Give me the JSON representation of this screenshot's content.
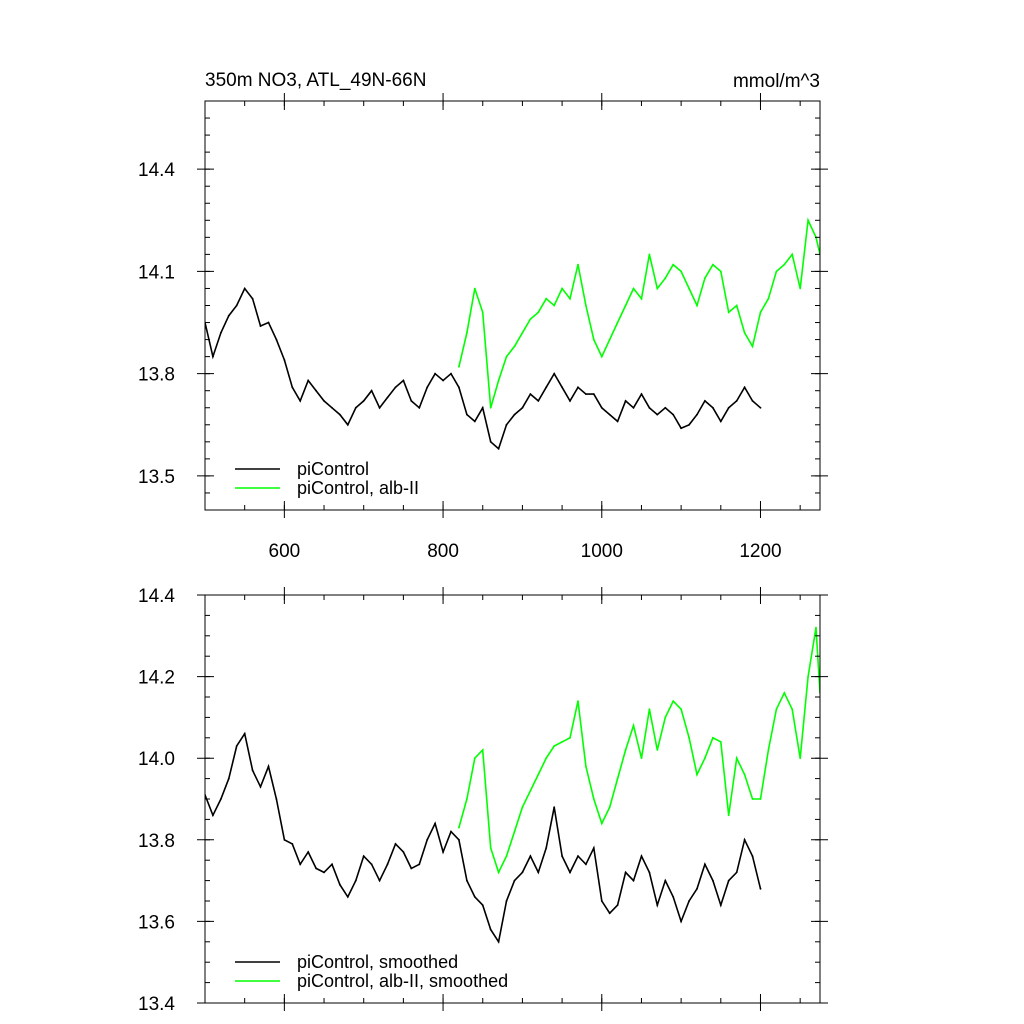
{
  "chart_data": [
    {
      "type": "line",
      "title": "350m NO3, ATL_49N-66N",
      "units": "mmol/m^3",
      "xlim": [
        500,
        1275
      ],
      "ylim": [
        13.4,
        14.6
      ],
      "xticks": [
        600,
        800,
        1000,
        1200
      ],
      "yticks": [
        13.5,
        13.8,
        14.1,
        14.4
      ],
      "xtick_labels": [
        "600",
        "800",
        "1000",
        "1200"
      ],
      "ytick_labels": [
        "13.5",
        "13.8",
        "14.1",
        "14.4"
      ],
      "legend": "bottom-left",
      "grid": false,
      "series": [
        {
          "name": "piControl",
          "color": "#000000",
          "x": [
            500,
            510,
            520,
            530,
            540,
            550,
            560,
            570,
            580,
            590,
            600,
            610,
            620,
            630,
            640,
            650,
            660,
            670,
            680,
            690,
            700,
            710,
            720,
            730,
            740,
            750,
            760,
            770,
            780,
            790,
            800,
            810,
            820,
            830,
            840,
            850,
            860,
            870,
            880,
            890,
            900,
            910,
            920,
            930,
            940,
            950,
            960,
            970,
            980,
            990,
            1000,
            1010,
            1020,
            1030,
            1040,
            1050,
            1060,
            1070,
            1080,
            1090,
            1100,
            1110,
            1120,
            1130,
            1140,
            1150,
            1160,
            1170,
            1180,
            1190,
            1200
          ],
          "values": [
            13.95,
            13.85,
            13.92,
            13.97,
            14.0,
            14.05,
            14.02,
            13.94,
            13.95,
            13.9,
            13.84,
            13.76,
            13.72,
            13.78,
            13.75,
            13.72,
            13.7,
            13.68,
            13.65,
            13.7,
            13.72,
            13.75,
            13.7,
            13.73,
            13.76,
            13.78,
            13.72,
            13.7,
            13.76,
            13.8,
            13.78,
            13.8,
            13.76,
            13.68,
            13.66,
            13.7,
            13.6,
            13.58,
            13.65,
            13.68,
            13.7,
            13.74,
            13.72,
            13.76,
            13.8,
            13.76,
            13.72,
            13.76,
            13.74,
            13.74,
            13.7,
            13.68,
            13.66,
            13.72,
            13.7,
            13.74,
            13.7,
            13.68,
            13.7,
            13.68,
            13.64,
            13.65,
            13.68,
            13.72,
            13.7,
            13.66,
            13.7,
            13.72,
            13.76,
            13.72,
            13.7
          ]
        },
        {
          "name": "piControl, alb-II",
          "color": "#00ff00",
          "x": [
            820,
            830,
            840,
            850,
            860,
            870,
            880,
            890,
            900,
            910,
            920,
            930,
            940,
            950,
            960,
            970,
            980,
            990,
            1000,
            1010,
            1020,
            1030,
            1040,
            1050,
            1060,
            1070,
            1080,
            1090,
            1100,
            1110,
            1120,
            1130,
            1140,
            1150,
            1160,
            1170,
            1180,
            1190,
            1200,
            1210,
            1220,
            1230,
            1240,
            1250,
            1260,
            1270,
            1275
          ],
          "values": [
            13.82,
            13.92,
            14.05,
            13.98,
            13.7,
            13.78,
            13.85,
            13.88,
            13.92,
            13.96,
            13.98,
            14.02,
            14.0,
            14.05,
            14.02,
            14.12,
            14.0,
            13.9,
            13.85,
            13.9,
            13.95,
            14.0,
            14.05,
            14.02,
            14.15,
            14.05,
            14.08,
            14.12,
            14.1,
            14.05,
            14.0,
            14.08,
            14.12,
            14.1,
            13.98,
            14.0,
            13.92,
            13.88,
            13.98,
            14.02,
            14.1,
            14.12,
            14.15,
            14.05,
            14.25,
            14.2,
            14.15
          ]
        }
      ]
    },
    {
      "type": "line",
      "xlim": [
        500,
        1275
      ],
      "ylim": [
        13.4,
        14.4
      ],
      "xticks": [
        600,
        800,
        1000,
        1200
      ],
      "yticks": [
        13.4,
        13.6,
        13.8,
        14.0,
        14.2,
        14.4
      ],
      "ytick_labels": [
        "13.4",
        "13.6",
        "13.8",
        "14.0",
        "14.2",
        "14.4"
      ],
      "legend": "bottom-left",
      "grid": false,
      "series": [
        {
          "name": "piControl, smoothed",
          "color": "#000000",
          "x": [
            500,
            510,
            520,
            530,
            540,
            550,
            560,
            570,
            580,
            590,
            600,
            610,
            620,
            630,
            640,
            650,
            660,
            670,
            680,
            690,
            700,
            710,
            720,
            730,
            740,
            750,
            760,
            770,
            780,
            790,
            800,
            810,
            820,
            830,
            840,
            850,
            860,
            870,
            880,
            890,
            900,
            910,
            920,
            930,
            940,
            950,
            960,
            970,
            980,
            990,
            1000,
            1010,
            1020,
            1030,
            1040,
            1050,
            1060,
            1070,
            1080,
            1090,
            1100,
            1110,
            1120,
            1130,
            1140,
            1150,
            1160,
            1170,
            1180,
            1190,
            1200
          ],
          "values": [
            13.91,
            13.86,
            13.9,
            13.95,
            14.03,
            14.06,
            13.97,
            13.93,
            13.98,
            13.9,
            13.8,
            13.79,
            13.74,
            13.77,
            13.73,
            13.72,
            13.74,
            13.69,
            13.66,
            13.7,
            13.76,
            13.74,
            13.7,
            13.74,
            13.79,
            13.77,
            13.73,
            13.74,
            13.8,
            13.84,
            13.77,
            13.82,
            13.8,
            13.7,
            13.66,
            13.64,
            13.58,
            13.55,
            13.65,
            13.7,
            13.72,
            13.76,
            13.72,
            13.78,
            13.88,
            13.76,
            13.72,
            13.76,
            13.74,
            13.78,
            13.65,
            13.62,
            13.64,
            13.72,
            13.7,
            13.76,
            13.72,
            13.64,
            13.7,
            13.66,
            13.6,
            13.65,
            13.68,
            13.74,
            13.7,
            13.64,
            13.7,
            13.72,
            13.8,
            13.76,
            13.68
          ]
        },
        {
          "name": "piControl, alb-II, smoothed",
          "color": "#00ff00",
          "x": [
            820,
            830,
            840,
            850,
            860,
            870,
            880,
            890,
            900,
            910,
            920,
            930,
            940,
            950,
            960,
            970,
            980,
            990,
            1000,
            1010,
            1020,
            1030,
            1040,
            1050,
            1060,
            1070,
            1080,
            1090,
            1100,
            1110,
            1120,
            1130,
            1140,
            1150,
            1160,
            1170,
            1180,
            1190,
            1200,
            1210,
            1220,
            1230,
            1240,
            1250,
            1260,
            1270,
            1275
          ],
          "values": [
            13.83,
            13.9,
            14.0,
            14.02,
            13.78,
            13.72,
            13.76,
            13.82,
            13.88,
            13.92,
            13.96,
            14.0,
            14.03,
            14.04,
            14.05,
            14.14,
            13.98,
            13.9,
            13.84,
            13.88,
            13.95,
            14.02,
            14.08,
            14.0,
            14.12,
            14.02,
            14.1,
            14.14,
            14.12,
            14.05,
            13.96,
            14.0,
            14.05,
            14.04,
            13.86,
            14.0,
            13.96,
            13.9,
            13.9,
            14.02,
            14.12,
            14.16,
            14.12,
            14.0,
            14.2,
            14.32,
            14.16
          ]
        }
      ]
    }
  ]
}
